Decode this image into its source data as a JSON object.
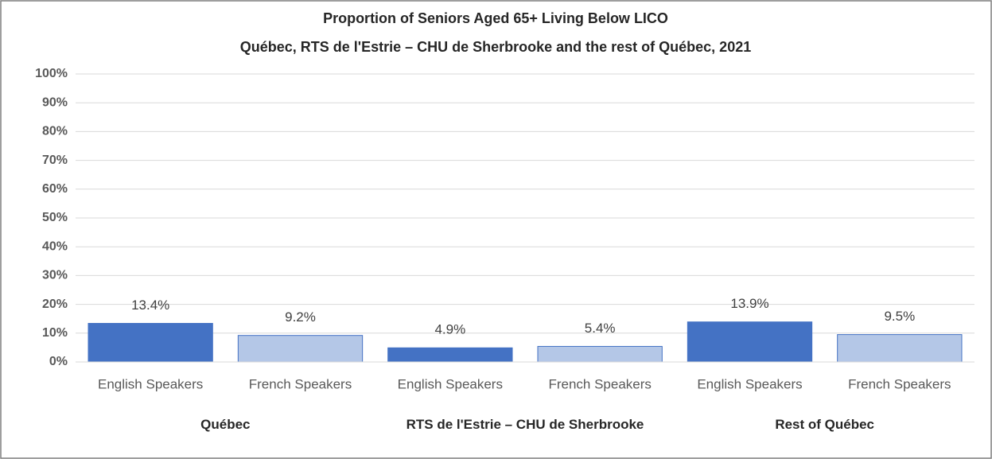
{
  "chart_data": {
    "type": "bar",
    "title": "Proportion of Seniors Aged 65+ Living Below LICO",
    "subtitle": "Québec, RTS de l'Estrie – CHU de Sherbrooke and the rest of Québec, 2021",
    "categories": [
      "Québec",
      "RTS de l'Estrie – CHU de Sherbrooke",
      "Rest of Québec"
    ],
    "series": [
      {
        "name": "English Speakers",
        "color": "#4472c4",
        "values": [
          13.4,
          4.9,
          13.9
        ],
        "value_labels": [
          "13.4%",
          "4.9%",
          "13.9%"
        ]
      },
      {
        "name": "French Speakers",
        "color": "#b4c7e7",
        "values": [
          9.2,
          5.4,
          9.5
        ],
        "value_labels": [
          "9.2%",
          "5.4%",
          "9.5%"
        ]
      }
    ],
    "ylim": [
      0,
      100
    ],
    "yticks": [
      {
        "value": 0,
        "label": "0%"
      },
      {
        "value": 10,
        "label": "10%"
      },
      {
        "value": 20,
        "label": "20%"
      },
      {
        "value": 30,
        "label": "30%"
      },
      {
        "value": 40,
        "label": "40%"
      },
      {
        "value": 50,
        "label": "50%"
      },
      {
        "value": 60,
        "label": "60%"
      },
      {
        "value": 70,
        "label": "70%"
      },
      {
        "value": 80,
        "label": "80%"
      },
      {
        "value": 90,
        "label": "90%"
      },
      {
        "value": 100,
        "label": "100%"
      }
    ],
    "grid": true
  }
}
